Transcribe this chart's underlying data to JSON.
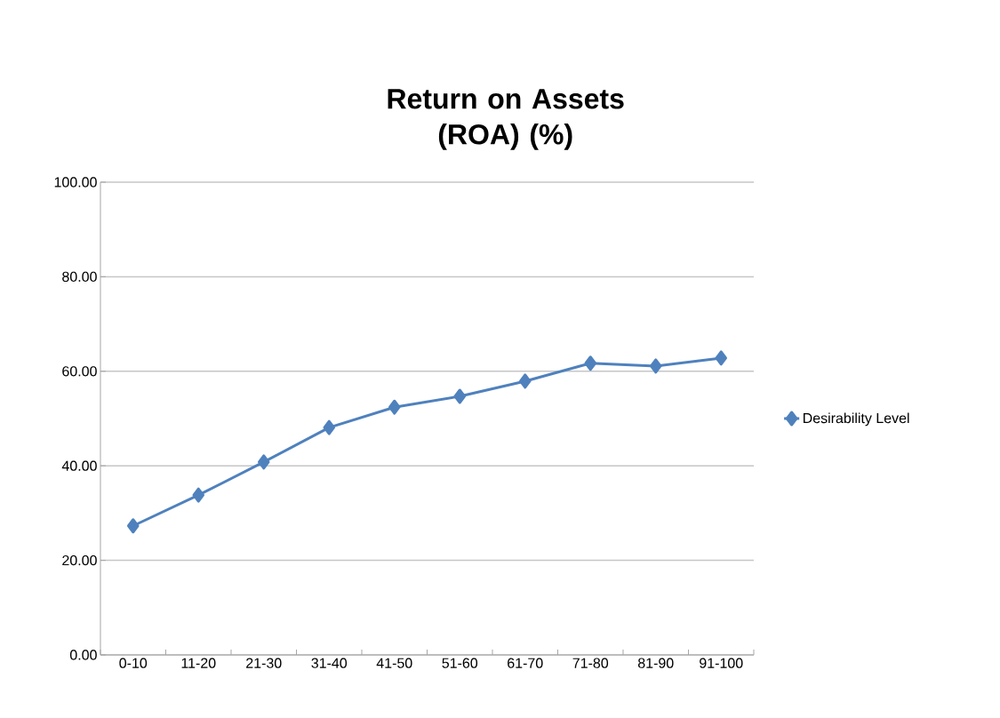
{
  "chart_data": {
    "type": "line",
    "title": "Return on Assets (ROA) (%)",
    "categories": [
      "0-10",
      "11-20",
      "21-30",
      "31-40",
      "41-50",
      "51-60",
      "61-70",
      "71-80",
      "81-90",
      "91-100"
    ],
    "series": [
      {
        "name": "Desirability Level",
        "color": "#4f81bd",
        "values": [
          27.3,
          33.8,
          40.8,
          48.1,
          52.4,
          54.7,
          57.9,
          61.7,
          61.1,
          62.8
        ]
      }
    ],
    "ylim": [
      0,
      100
    ],
    "yticks": [
      {
        "value": 0,
        "label": "0.00"
      },
      {
        "value": 20,
        "label": "20.00"
      },
      {
        "value": 40,
        "label": "40.00"
      },
      {
        "value": 60,
        "label": "60.00"
      },
      {
        "value": 80,
        "label": "80.00"
      },
      {
        "value": 100,
        "label": "100.00"
      }
    ],
    "grid": "y",
    "legend": "right",
    "marker": "diamond",
    "line_style": "solid"
  }
}
